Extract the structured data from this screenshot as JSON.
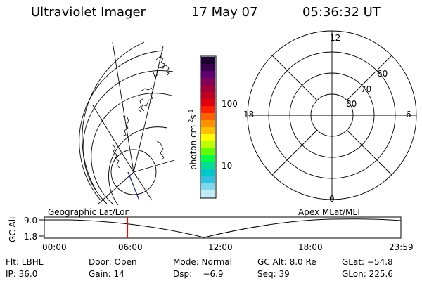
{
  "header": {
    "instrument": "Ultraviolet Imager",
    "date": "17 May 07",
    "time": "05:36:32 UT"
  },
  "colorbar": {
    "label_main": "photon cm",
    "label_exp1": "-2",
    "label_mid": "s",
    "label_exp2": "-1",
    "ticks": [
      "100",
      "10"
    ],
    "colors": [
      "#1a0030",
      "#3a0050",
      "#60006e",
      "#80005a",
      "#a0003a",
      "#c00020",
      "#e00010",
      "#ff2000",
      "#ff6000",
      "#ff9000",
      "#ffc000",
      "#ffff00",
      "#c0ff00",
      "#60ff00",
      "#00ff40",
      "#00e090",
      "#00c8c8",
      "#30c0e0",
      "#80d8ee",
      "#c0ecf6"
    ]
  },
  "polar_grid": {
    "mlt_labels": [
      "12",
      "18",
      "6",
      "0"
    ],
    "lat_labels": [
      "60",
      "70",
      "80"
    ]
  },
  "timeline": {
    "left_label": "Geographic Lat/Lon",
    "right_label": "Apex MLat/MLT",
    "axis_title": "GC Alt",
    "y_ticks": [
      "9.0",
      "1.8"
    ],
    "x_ticks": [
      "00:00",
      "06:00",
      "12:00",
      "18:00",
      "23:59"
    ],
    "marker_time_hours": 5.61,
    "marker_color": "#ff0000"
  },
  "info": {
    "row1": {
      "flt": "Flt: LBHL",
      "door": "Door: Open",
      "mode": "Mode: Normal",
      "gc_alt": "GC Alt: 8.0 Re",
      "glat": "GLat: −54.8"
    },
    "row2": {
      "ip": "IP: 36.0",
      "gain": "Gain: 14",
      "dsp": "Dsp:    −6.9",
      "seq": "Seq: 39",
      "glon": "GLon: 225.6"
    }
  }
}
